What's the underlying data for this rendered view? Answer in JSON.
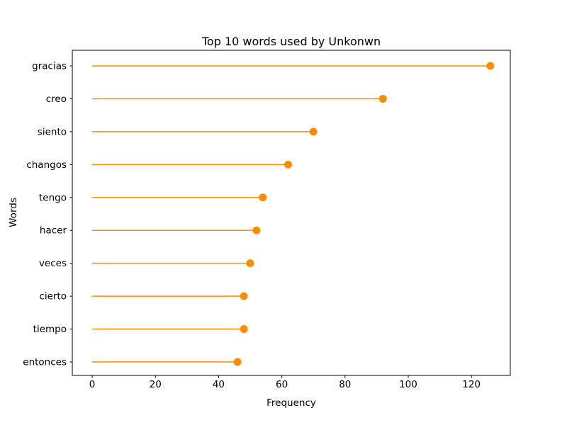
{
  "chart_data": {
    "type": "lollipop",
    "orientation": "horizontal",
    "title": "Top 10 words used by Unkonwn",
    "xlabel": "Frequency",
    "ylabel": "Words",
    "categories": [
      "gracias",
      "creo",
      "siento",
      "changos",
      "tengo",
      "hacer",
      "veces",
      "cierto",
      "tiempo",
      "entonces"
    ],
    "values": [
      126,
      92,
      70,
      62,
      54,
      52,
      50,
      48,
      48,
      46
    ],
    "baseline": 0,
    "xticks": [
      0,
      20,
      40,
      60,
      80,
      100,
      120
    ],
    "xlim": [
      -6.3,
      132.3
    ],
    "grid": false,
    "legend": null,
    "colors": {
      "stem": "#ff8c00",
      "marker": "#ff8c00",
      "spine": "#000000",
      "text": "#000000",
      "background": "#ffffff"
    }
  }
}
